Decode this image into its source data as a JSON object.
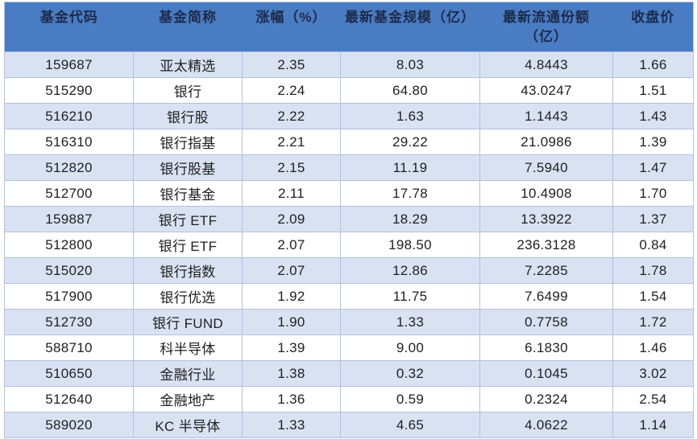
{
  "chart_data": {
    "type": "table",
    "columns": [
      "基金代码",
      "基金简称",
      "涨幅（%）",
      "最新基金规模（亿）",
      "最新流通份额\n（亿）",
      "收盘价"
    ],
    "column_keys": [
      "fund_code",
      "fund_name",
      "change_pct",
      "latest_fund_scale_100m",
      "latest_circulating_shares_100m",
      "closing_price"
    ],
    "rows": [
      [
        "159687",
        "亚太精选",
        "2.35",
        "8.03",
        "4.8443",
        "1.66"
      ],
      [
        "515290",
        "银行",
        "2.24",
        "64.80",
        "43.0247",
        "1.51"
      ],
      [
        "516210",
        "银行股",
        "2.22",
        "1.63",
        "1.1443",
        "1.43"
      ],
      [
        "516310",
        "银行指基",
        "2.21",
        "29.22",
        "21.0986",
        "1.39"
      ],
      [
        "512820",
        "银行股基",
        "2.15",
        "11.19",
        "7.5940",
        "1.47"
      ],
      [
        "512700",
        "银行基金",
        "2.11",
        "17.78",
        "10.4908",
        "1.70"
      ],
      [
        "159887",
        "银行 ETF",
        "2.09",
        "18.29",
        "13.3922",
        "1.37"
      ],
      [
        "512800",
        "银行 ETF",
        "2.07",
        "198.50",
        "236.3128",
        "0.84"
      ],
      [
        "515020",
        "银行指数",
        "2.07",
        "12.86",
        "7.2285",
        "1.78"
      ],
      [
        "517900",
        "银行优选",
        "1.92",
        "11.75",
        "7.6499",
        "1.54"
      ],
      [
        "512730",
        "银行 FUND",
        "1.90",
        "1.33",
        "0.7758",
        "1.72"
      ],
      [
        "588710",
        "科半导体",
        "1.39",
        "9.00",
        "6.1830",
        "1.46"
      ],
      [
        "510650",
        "金融行业",
        "1.38",
        "0.32",
        "0.1045",
        "3.02"
      ],
      [
        "512640",
        "金融地产",
        "1.36",
        "0.59",
        "0.2324",
        "2.54"
      ],
      [
        "589020",
        "KC 半导体",
        "1.33",
        "4.65",
        "4.0622",
        "1.14"
      ]
    ],
    "layout": {
      "stripe_pattern": "odd-rows-shaded",
      "header_alignment": "top-center",
      "cell_alignment": "center"
    },
    "colors": {
      "header_bg": "#4a7cc3",
      "header_text": "#1c2b4b",
      "stripe_row_bg": "#d9e2f3",
      "plain_row_bg": "#ffffff",
      "border": "#b3c1db",
      "cell_text": "#1f1f1f",
      "page_bg": "#ffffff"
    }
  }
}
